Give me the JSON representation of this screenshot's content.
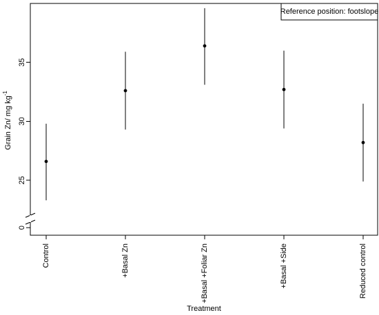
{
  "chart_data": {
    "type": "scatter",
    "title": "",
    "xlabel": "Treatment",
    "ylabel": "Grain Zn/ mg kg",
    "ylabel_superscript": "-1",
    "categories": [
      "Control",
      "+Basal Zn",
      "+Basal +Foliar Zn",
      "+Basal +Side",
      "Reduced control"
    ],
    "means": [
      26.6,
      32.6,
      36.4,
      32.7,
      28.2
    ],
    "lower": [
      23.3,
      29.3,
      33.1,
      29.4,
      24.9
    ],
    "upper": [
      29.8,
      35.9,
      39.6,
      36.0,
      31.5
    ],
    "y_ticks": [
      25,
      30,
      35
    ],
    "y_break_tick": 0,
    "ylim": [
      22.5,
      40.0
    ],
    "axis_break": true,
    "legend": {
      "text": "Reference position: footslope",
      "position": "top-right"
    },
    "grid": false
  }
}
